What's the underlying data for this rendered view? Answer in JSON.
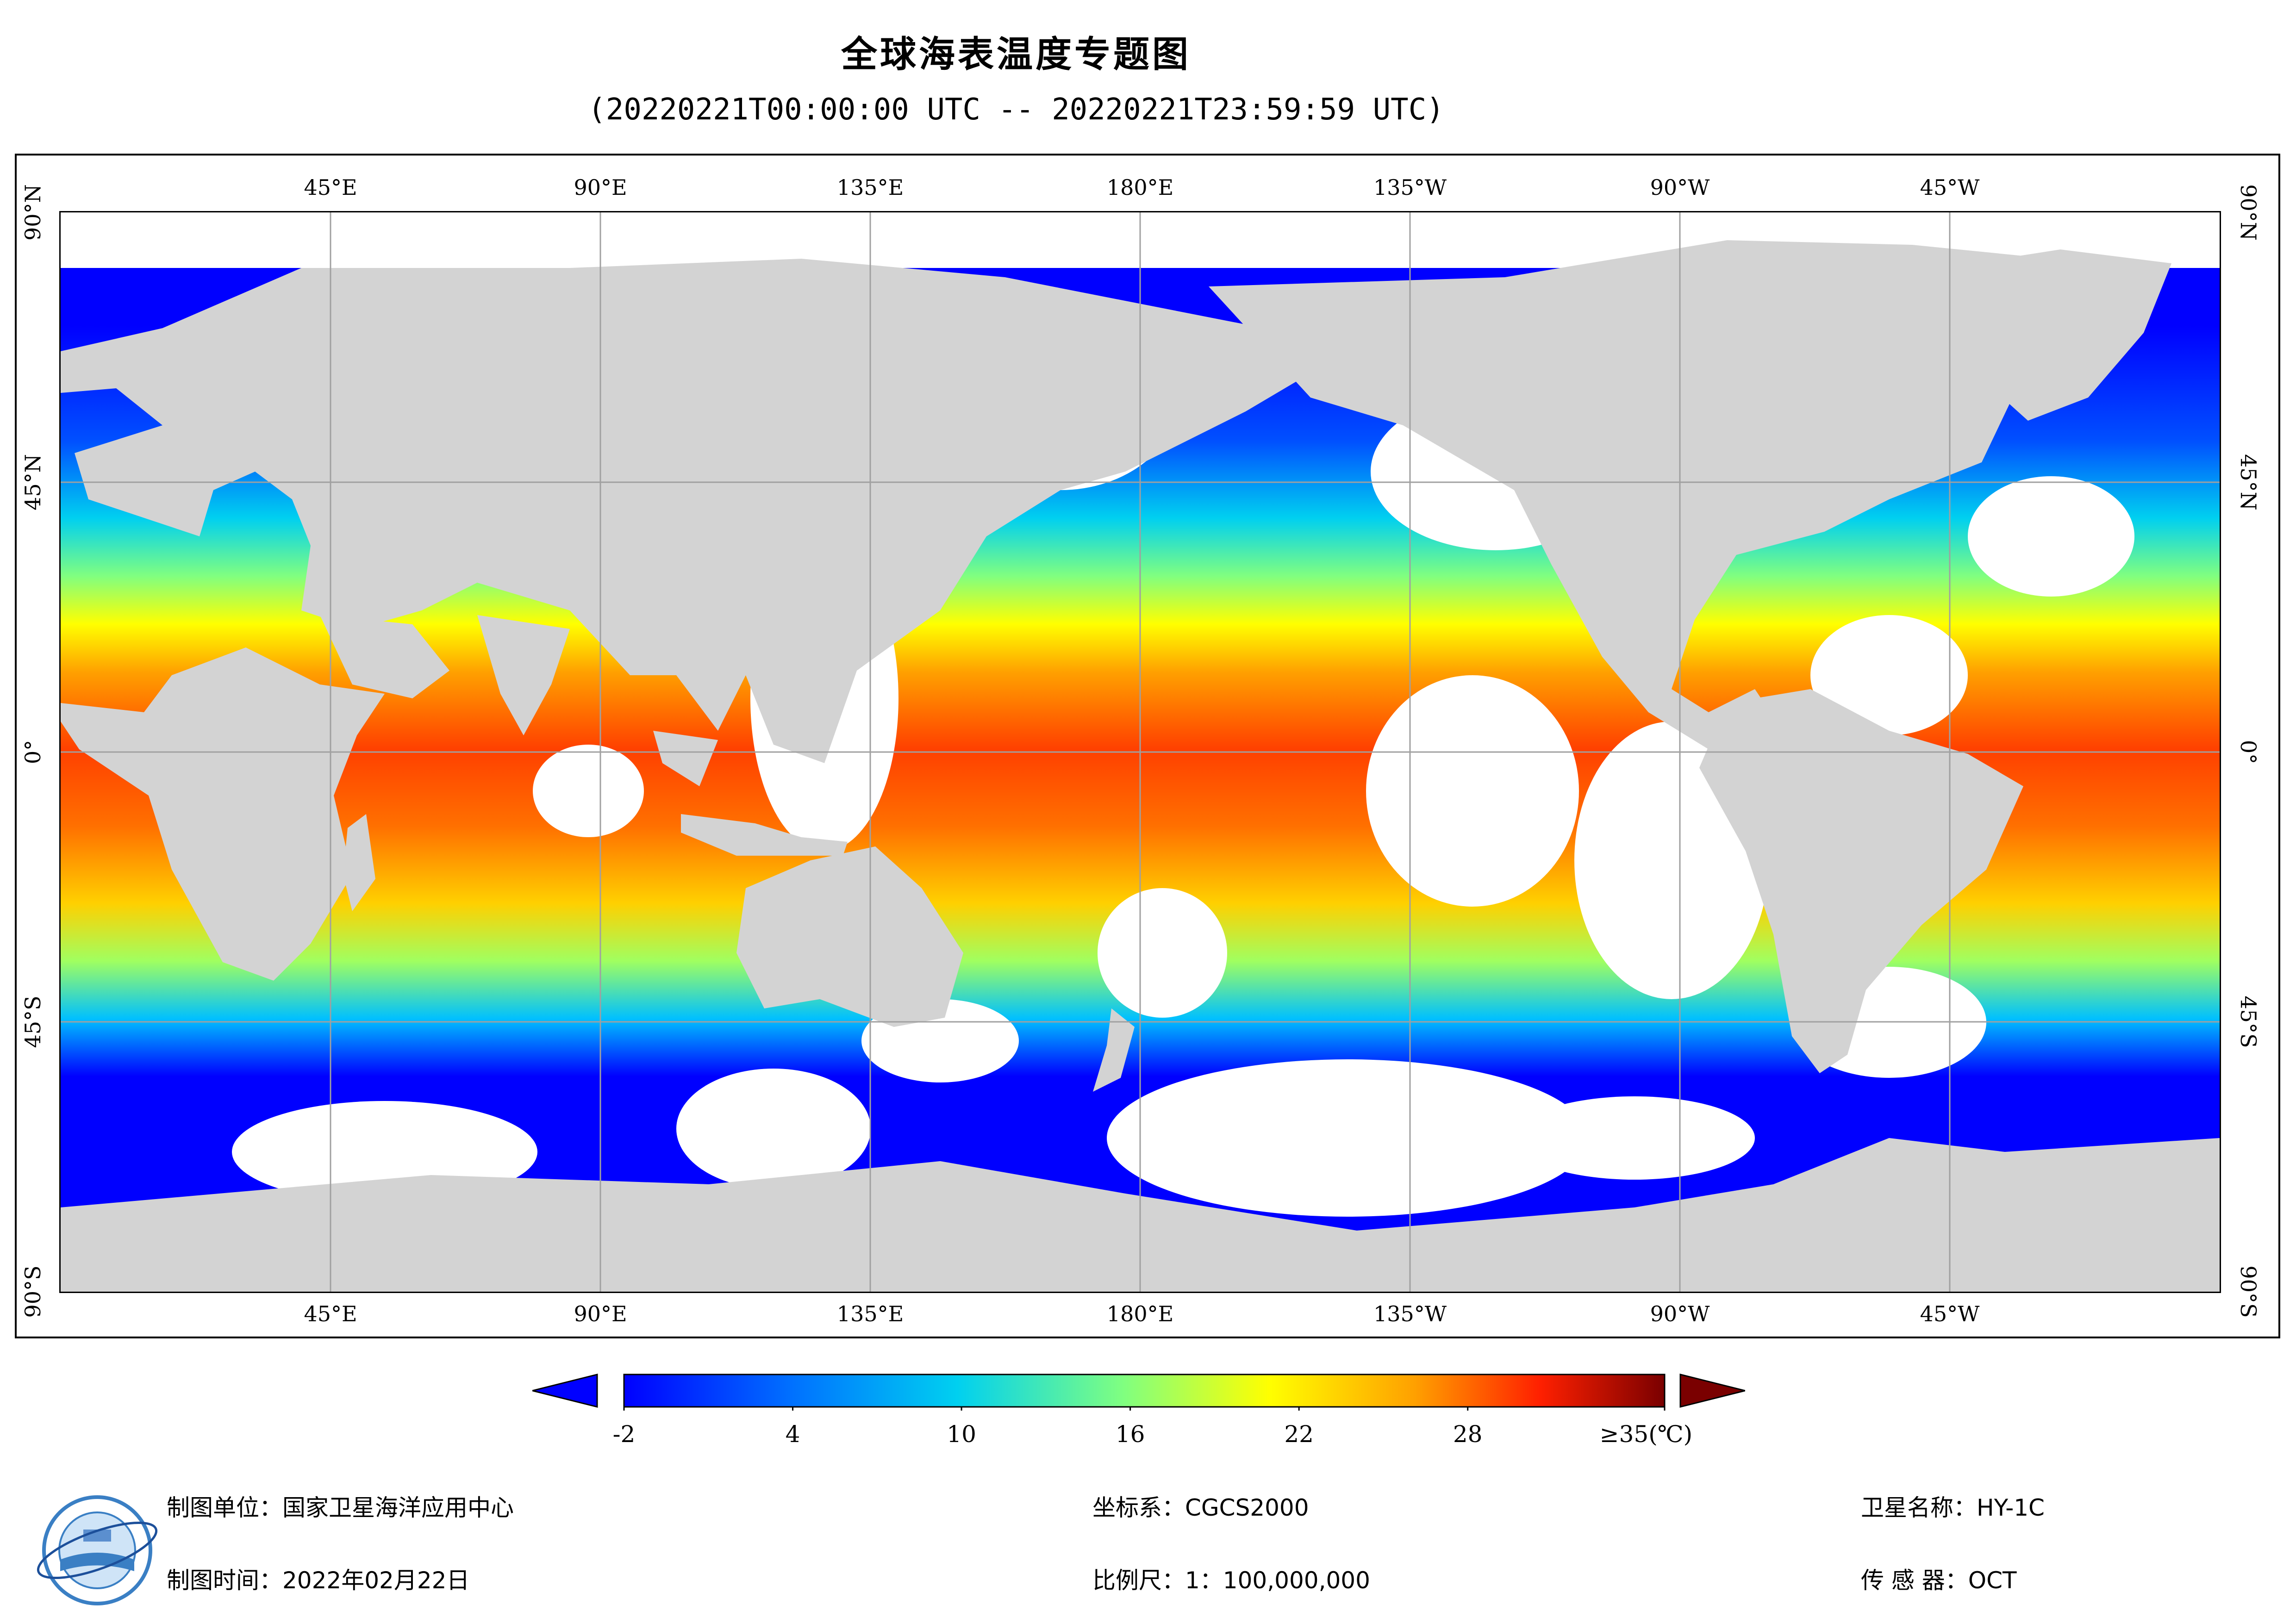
{
  "title": "全球海表温度专题图",
  "subtitle": "(20220221T00:00:00 UTC -- 20220221T23:59:59 UTC)",
  "map": {
    "projection": "plate-carree",
    "grid": true,
    "lon_ticks_top": [
      "45°E",
      "90°E",
      "135°E",
      "180°E",
      "135°W",
      "90°W",
      "45°W"
    ],
    "lon_ticks_bottom": [
      "45°E",
      "90°E",
      "135°E",
      "180°E",
      "135°W",
      "90°W",
      "45°W"
    ],
    "lat_ticks_left": [
      "90°N",
      "45°N",
      "0°",
      "45°S",
      "90°S"
    ],
    "lat_ticks_right": [
      "90°N",
      "45°N",
      "0°",
      "45°S",
      "90°S"
    ],
    "colors": {
      "land": "#d3d3d3",
      "no_data": "#ffffff",
      "grid": "#a0a0a0"
    }
  },
  "colorbar": {
    "labels": [
      "-2",
      "4",
      "10",
      "16",
      "22",
      "28",
      "≥35(℃)"
    ],
    "min": -2,
    "max": 35,
    "colors": [
      "#0000ff",
      "#0070ff",
      "#00d0f0",
      "#80ff80",
      "#ffff00",
      "#ffa000",
      "#ff2000",
      "#7a0000"
    ],
    "under_color": "#0000ff",
    "over_color": "#7a0000"
  },
  "footer": {
    "unit": "制图单位：国家卫星海洋应用中心",
    "time": "制图时间：2022年02月22日",
    "crs": "坐标系：CGCS2000",
    "scale": "比例尺：1：100,000,000",
    "satellite": "卫星名称：HY-1C",
    "sensor": "传  感  器：OCT"
  }
}
